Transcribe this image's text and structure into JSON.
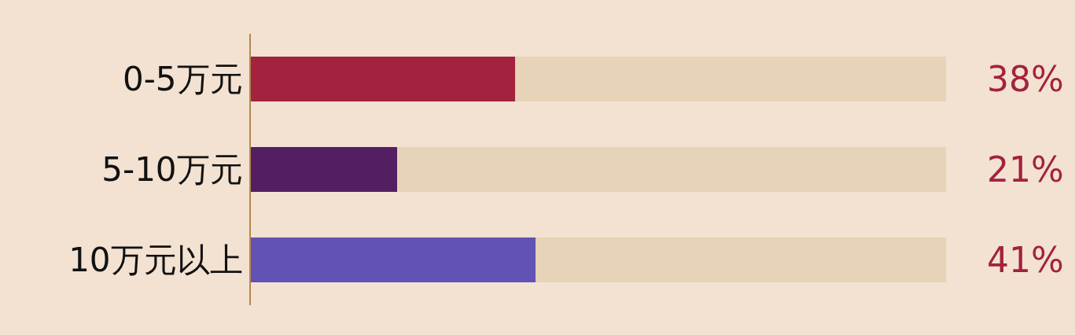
{
  "chart_data": {
    "type": "bar",
    "orientation": "horizontal",
    "stacked": true,
    "categories": [
      "0-5万元",
      "5-10万元",
      "10万元以上"
    ],
    "series": [
      {
        "colors": [
          "#a32240",
          "#531f62",
          "#6352b5"
        ],
        "values": [
          38,
          21,
          41
        ],
        "value_labels": [
          "38%",
          "21%",
          "41%"
        ]
      },
      {
        "color": "#e6d3b8",
        "values": [
          62,
          79,
          59
        ]
      }
    ],
    "xlim": [
      0,
      100
    ],
    "tick_labels": "y",
    "grid": false
  }
}
